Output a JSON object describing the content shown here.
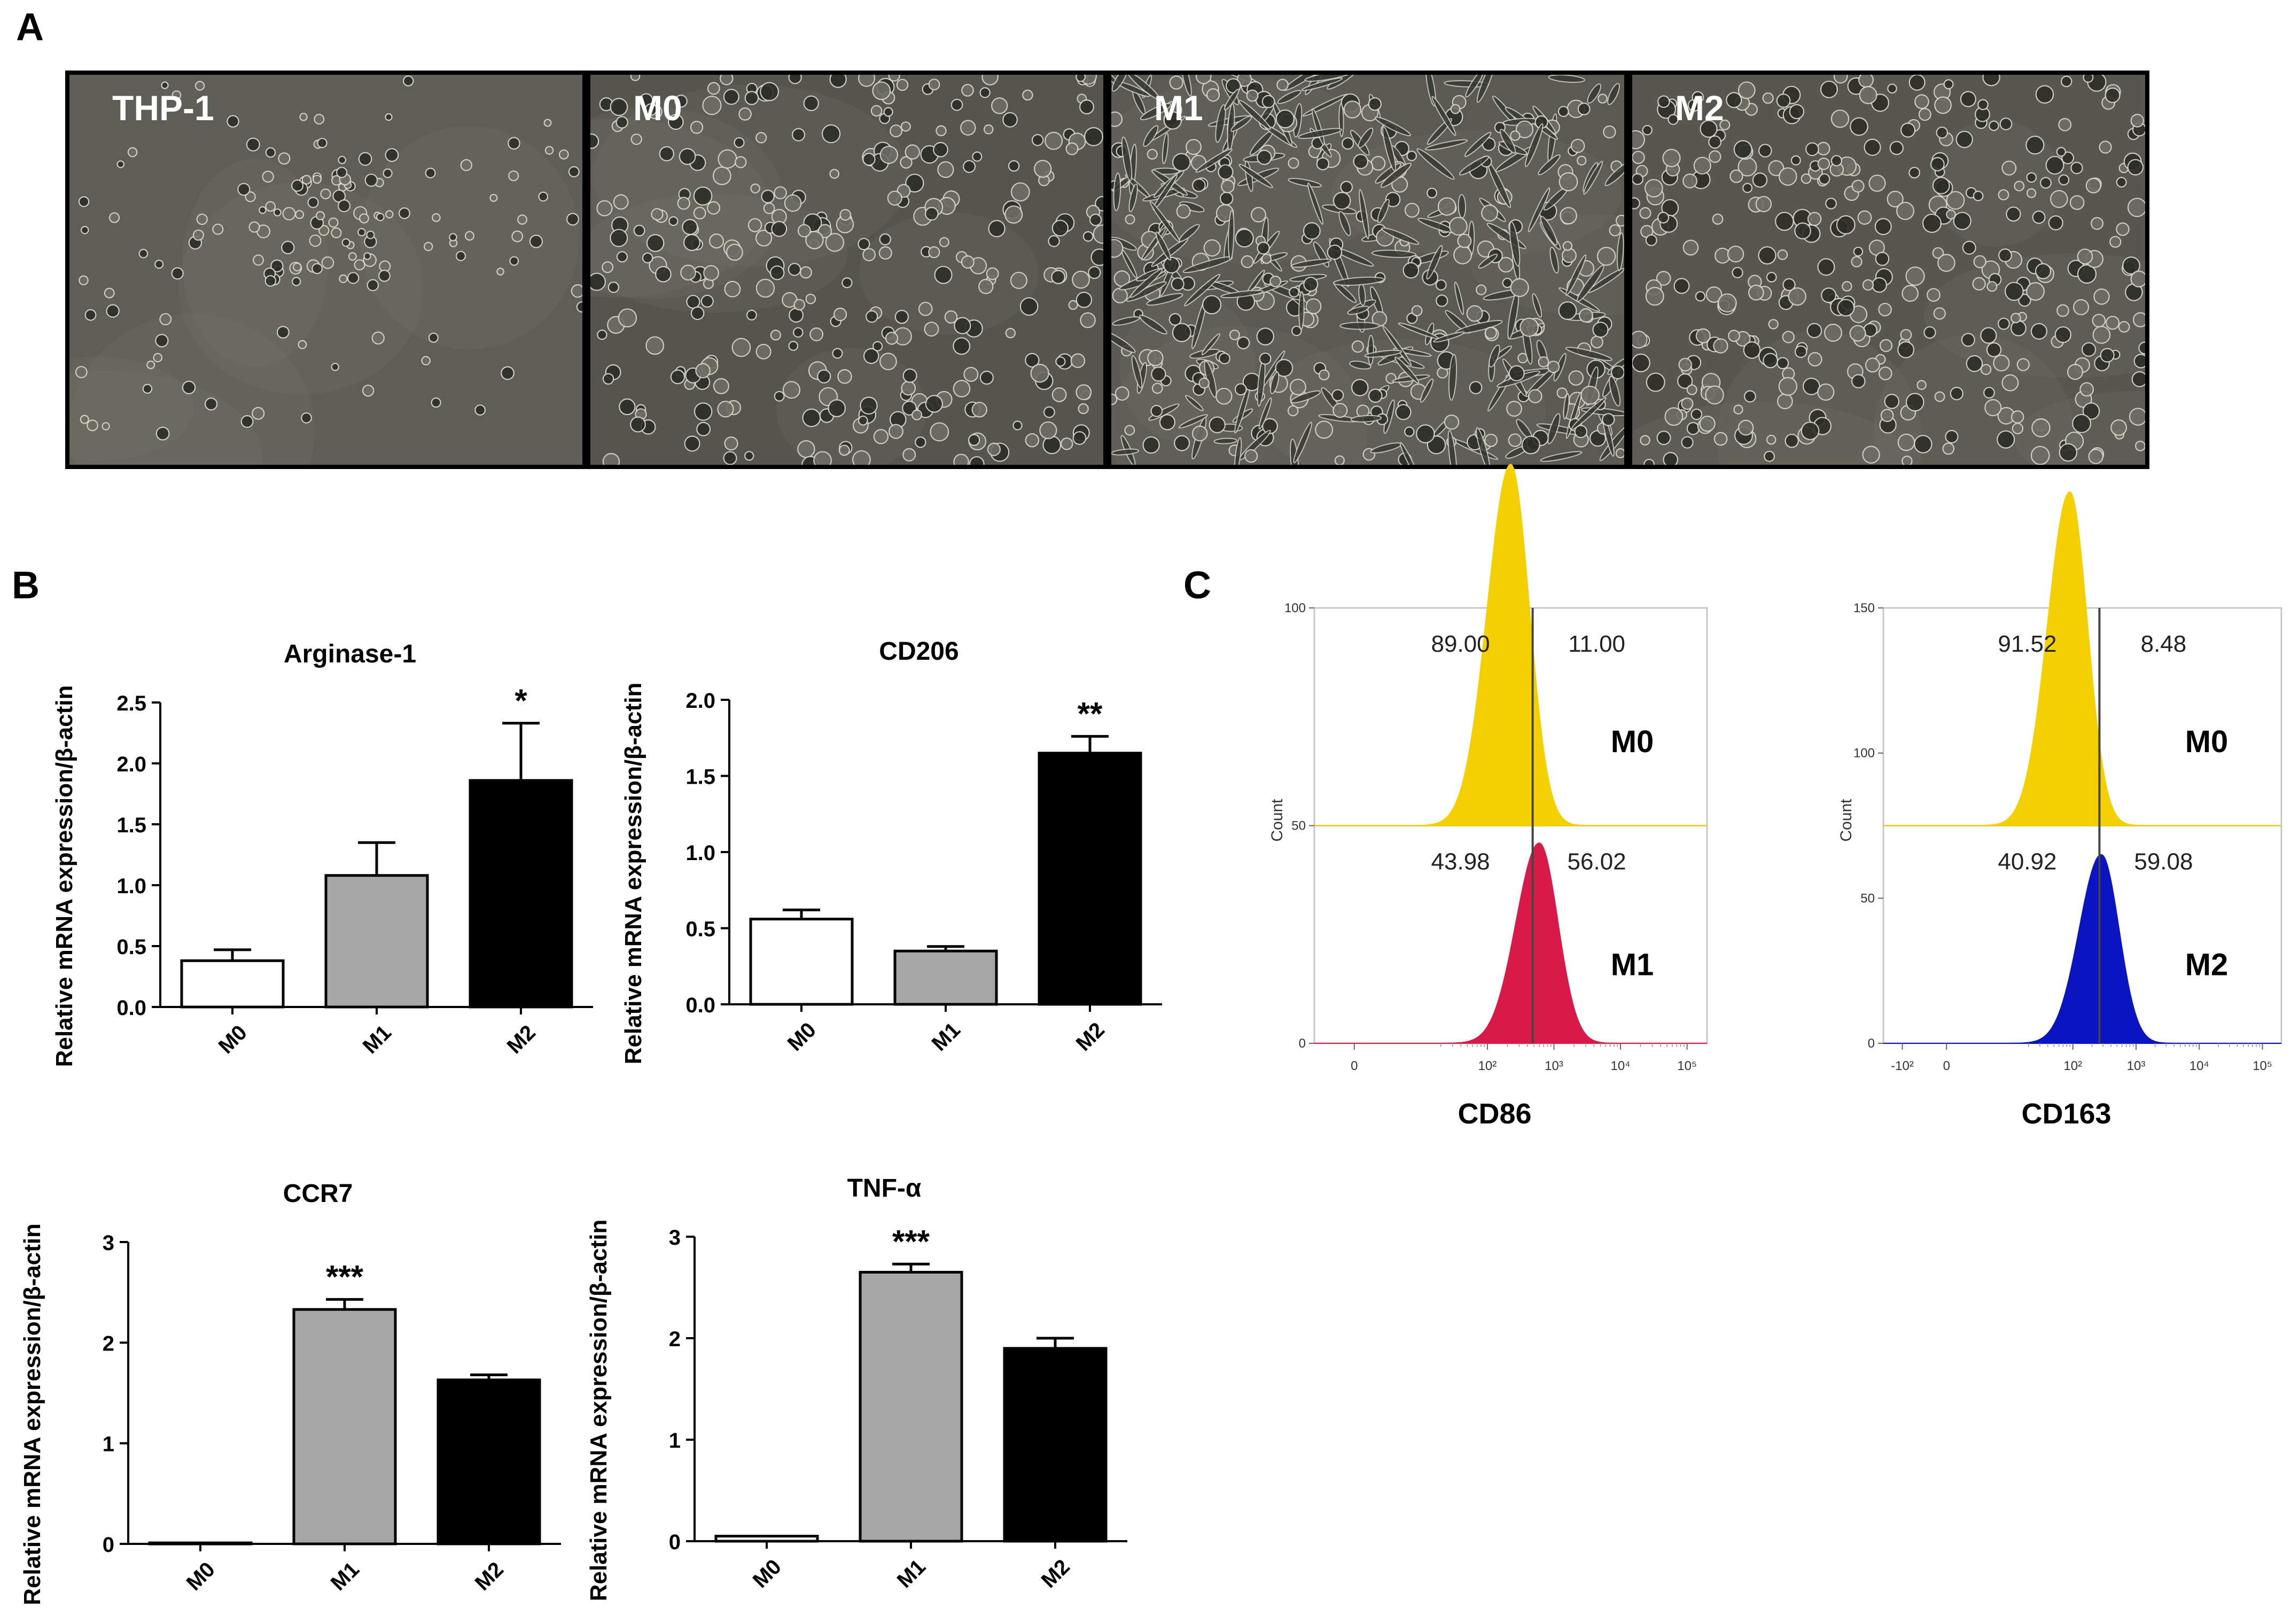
{
  "panel_labels": {
    "a": "A",
    "b": "B",
    "c": "C"
  },
  "micrographs": [
    {
      "label": "THP-1",
      "bg": "#5e5e56",
      "cell_count": 150,
      "cell_size": "small-round",
      "seed": 7
    },
    {
      "label": "M0",
      "bg": "#55554d",
      "cell_count": 320,
      "cell_size": "medium",
      "seed": 13
    },
    {
      "label": "M1",
      "bg": "#5a5a52",
      "cell_count": 560,
      "cell_size": "elongated",
      "seed": 29
    },
    {
      "label": "M2",
      "bg": "#57574f",
      "cell_count": 380,
      "cell_size": "medium",
      "seed": 41
    }
  ],
  "colors": {
    "M0_bar": "#ffffff",
    "M1_bar": "#a6a6a6",
    "M2_bar": "#000000",
    "M0_hist": "#f5d000",
    "M1_hist": "#d71a48",
    "M2_hist": "#0a14c0",
    "gate_line": "#444444",
    "hist_frame": "#c8c8c8"
  },
  "chart_data": [
    {
      "type": "bar",
      "panel": "B",
      "title": "Arginase-1",
      "categories": [
        "M0",
        "M1",
        "M2"
      ],
      "values": [
        0.38,
        1.08,
        1.86
      ],
      "errors": [
        0.09,
        0.27,
        0.47
      ],
      "significance": [
        "",
        "",
        "*"
      ],
      "ylabel": "Relative mRNA expression/β-actin",
      "ylim": [
        0,
        2.5
      ],
      "yticks": [
        "0.0",
        "0.5",
        "1.0",
        "1.5",
        "2.0",
        "2.5"
      ]
    },
    {
      "type": "bar",
      "panel": "B",
      "title": "CD206",
      "categories": [
        "M0",
        "M1",
        "M2"
      ],
      "values": [
        0.56,
        0.35,
        1.65
      ],
      "errors": [
        0.06,
        0.03,
        0.11
      ],
      "significance": [
        "",
        "",
        "**"
      ],
      "ylabel": "Relative mRNA expression/β-actin",
      "ylim": [
        0,
        2.0
      ],
      "yticks": [
        "0.0",
        "0.5",
        "1.0",
        "1.5",
        "2.0"
      ]
    },
    {
      "type": "bar",
      "panel": "B",
      "title": "CCR7",
      "categories": [
        "M0",
        "M1",
        "M2"
      ],
      "values": [
        0.01,
        2.33,
        1.63
      ],
      "errors": [
        0.0,
        0.1,
        0.05
      ],
      "significance": [
        "",
        "***",
        ""
      ],
      "ylabel": "Relative mRNA expression/β-actin",
      "ylim": [
        0,
        3
      ],
      "yticks": [
        "0",
        "1",
        "2",
        "3"
      ]
    },
    {
      "type": "bar",
      "panel": "B",
      "title": "TNF-α",
      "categories": [
        "M0",
        "M1",
        "M2"
      ],
      "values": [
        0.05,
        2.65,
        1.9
      ],
      "errors": [
        0.0,
        0.08,
        0.1
      ],
      "significance": [
        "",
        "***",
        ""
      ],
      "ylabel": "Relative mRNA expression/β-actin",
      "ylim": [
        0,
        3
      ],
      "yticks": [
        "0",
        "1",
        "2",
        "3"
      ]
    },
    {
      "type": "histogram",
      "panel": "C",
      "xlabel": "CD86",
      "ylabel": "Count",
      "yticks": [
        "0",
        "50",
        "100"
      ],
      "xticks": [
        "0",
        "10²",
        "10³",
        "10⁴",
        "10⁵"
      ],
      "top": {
        "name": "M0",
        "left_pct": "89.00",
        "right_pct": "11.00",
        "peak_log": 2.35,
        "peak_count": 83
      },
      "bottom": {
        "name": "M1",
        "left_pct": "43.98",
        "right_pct": "56.02",
        "peak_log": 2.78,
        "peak_count": 46
      },
      "gate_log": 2.68
    },
    {
      "type": "histogram",
      "panel": "C",
      "xlabel": "CD163",
      "ylabel": "Count",
      "yticks": [
        "0",
        "50",
        "100",
        "150"
      ],
      "xticks": [
        "-10²",
        "0",
        "10²",
        "10³",
        "10⁴",
        "10⁵"
      ],
      "top": {
        "name": "M0",
        "left_pct": "91.52",
        "right_pct": "8.48",
        "peak_log": 1.95,
        "peak_count": 115
      },
      "bottom": {
        "name": "M2",
        "left_pct": "40.92",
        "right_pct": "59.08",
        "peak_log": 2.45,
        "peak_count": 65
      },
      "gate_log": 2.42
    }
  ]
}
